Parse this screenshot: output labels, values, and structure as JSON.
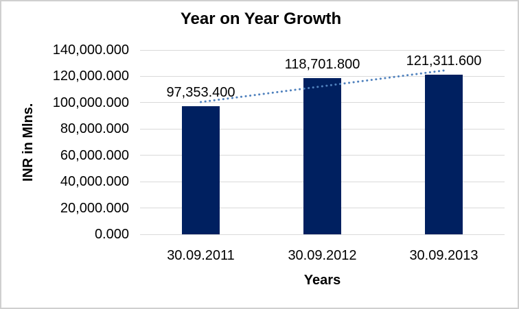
{
  "window": {
    "background": "#ffffff",
    "border_color": "#cfcfcf"
  },
  "chart_data": {
    "type": "bar",
    "title": "Year on Year Growth",
    "xlabel": "Years",
    "ylabel": "INR in Mlns.",
    "categories": [
      "30.09.2011",
      "30.09.2012",
      "30.09.2013"
    ],
    "values": [
      97353.4,
      118701.8,
      121311.6
    ],
    "data_labels": [
      "97,353.400",
      "118,701.800",
      "121,311.600"
    ],
    "ylim": [
      0,
      140000
    ],
    "ytick_step": 20000,
    "ytick_labels_top_to_bottom": [
      "140,000.000",
      "120,000.000",
      "100,000.000",
      "80,000.000",
      "60,000.000",
      "40,000.000",
      "20,000.000",
      "0.000"
    ],
    "grid": true,
    "legend": "none",
    "bar_color": "#002060",
    "gridline_color": "#d9d9d9",
    "text_color": "#000000",
    "trendline": {
      "type": "linear",
      "style": "dotted",
      "color": "#4f81bd"
    }
  }
}
